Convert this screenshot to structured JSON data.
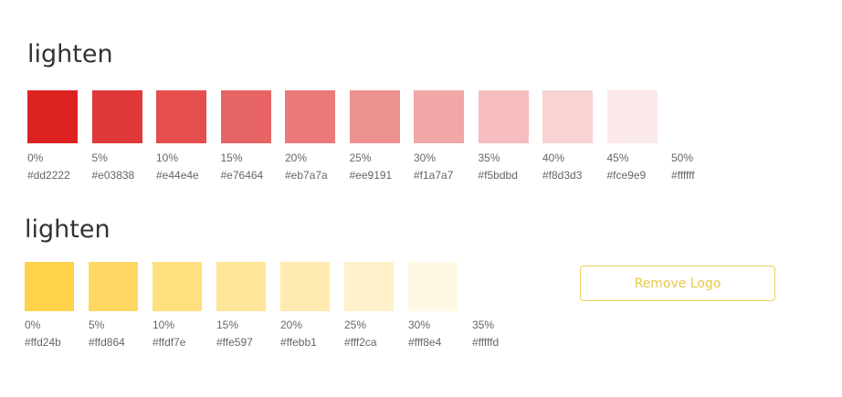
{
  "sections": [
    {
      "title": "lighten",
      "swatches": [
        {
          "percent": "0%",
          "hex": "#dd2222"
        },
        {
          "percent": "5%",
          "hex": "#e03838"
        },
        {
          "percent": "10%",
          "hex": "#e44e4e"
        },
        {
          "percent": "15%",
          "hex": "#e76464"
        },
        {
          "percent": "20%",
          "hex": "#eb7a7a"
        },
        {
          "percent": "25%",
          "hex": "#ee9191"
        },
        {
          "percent": "30%",
          "hex": "#f1a7a7"
        },
        {
          "percent": "35%",
          "hex": "#f5bdbd"
        },
        {
          "percent": "40%",
          "hex": "#f8d3d3"
        },
        {
          "percent": "45%",
          "hex": "#fce9e9"
        },
        {
          "percent": "50%",
          "hex": "#ffffff"
        }
      ]
    },
    {
      "title": "lighten",
      "swatches": [
        {
          "percent": "0%",
          "hex": "#ffd24b"
        },
        {
          "percent": "5%",
          "hex": "#ffd864"
        },
        {
          "percent": "10%",
          "hex": "#ffdf7e"
        },
        {
          "percent": "15%",
          "hex": "#ffe597"
        },
        {
          "percent": "20%",
          "hex": "#ffebb1"
        },
        {
          "percent": "25%",
          "hex": "#fff2ca"
        },
        {
          "percent": "30%",
          "hex": "#fff8e4"
        },
        {
          "percent": "35%",
          "hex": "#fffffd"
        }
      ]
    }
  ],
  "button": {
    "label": "Remove Logo"
  }
}
